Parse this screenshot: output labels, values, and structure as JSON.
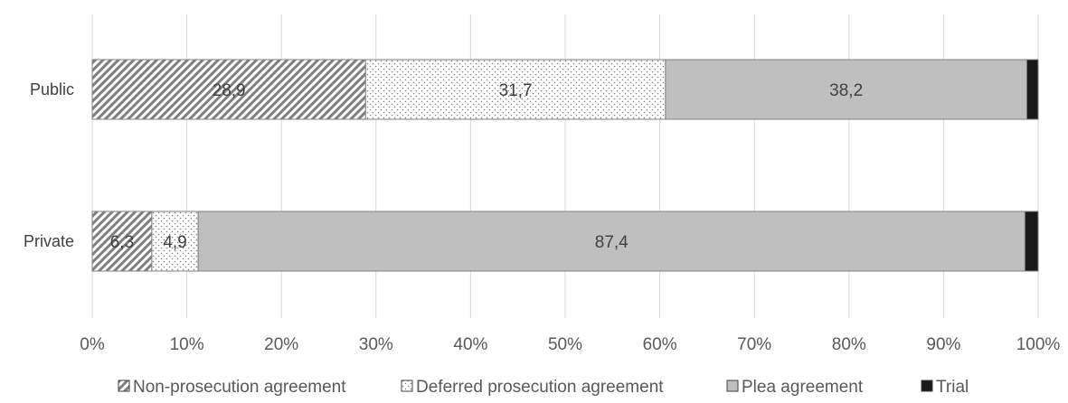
{
  "chart_data": {
    "type": "bar",
    "orientation": "horizontal",
    "stacked": true,
    "percent_stacked": true,
    "categories": [
      "Public",
      "Private"
    ],
    "series": [
      {
        "name": "Non-prosecution agreement",
        "values": [
          28.9,
          6.3
        ],
        "labels": [
          "28,9",
          "6,3"
        ],
        "pattern": "diagonal-hatch",
        "color": "#7f7f7f"
      },
      {
        "name": "Deferred prosecution agreement",
        "values": [
          31.7,
          4.9
        ],
        "labels": [
          "31,7",
          "4,9"
        ],
        "pattern": "dots",
        "color": "#7f7f7f"
      },
      {
        "name": "Plea agreement",
        "values": [
          38.2,
          87.4
        ],
        "labels": [
          "38,2",
          "87,4"
        ],
        "pattern": "solid",
        "color": "#bfbfbf"
      },
      {
        "name": "Trial",
        "values": [
          1.2,
          1.4
        ],
        "labels": [
          "",
          ""
        ],
        "pattern": "solid",
        "color": "#1a1a1a"
      }
    ],
    "x_ticks": [
      "0%",
      "10%",
      "20%",
      "30%",
      "40%",
      "50%",
      "60%",
      "70%",
      "80%",
      "90%",
      "100%"
    ],
    "xlim": [
      0,
      100
    ],
    "grid": "vertical",
    "legend_position": "bottom"
  }
}
